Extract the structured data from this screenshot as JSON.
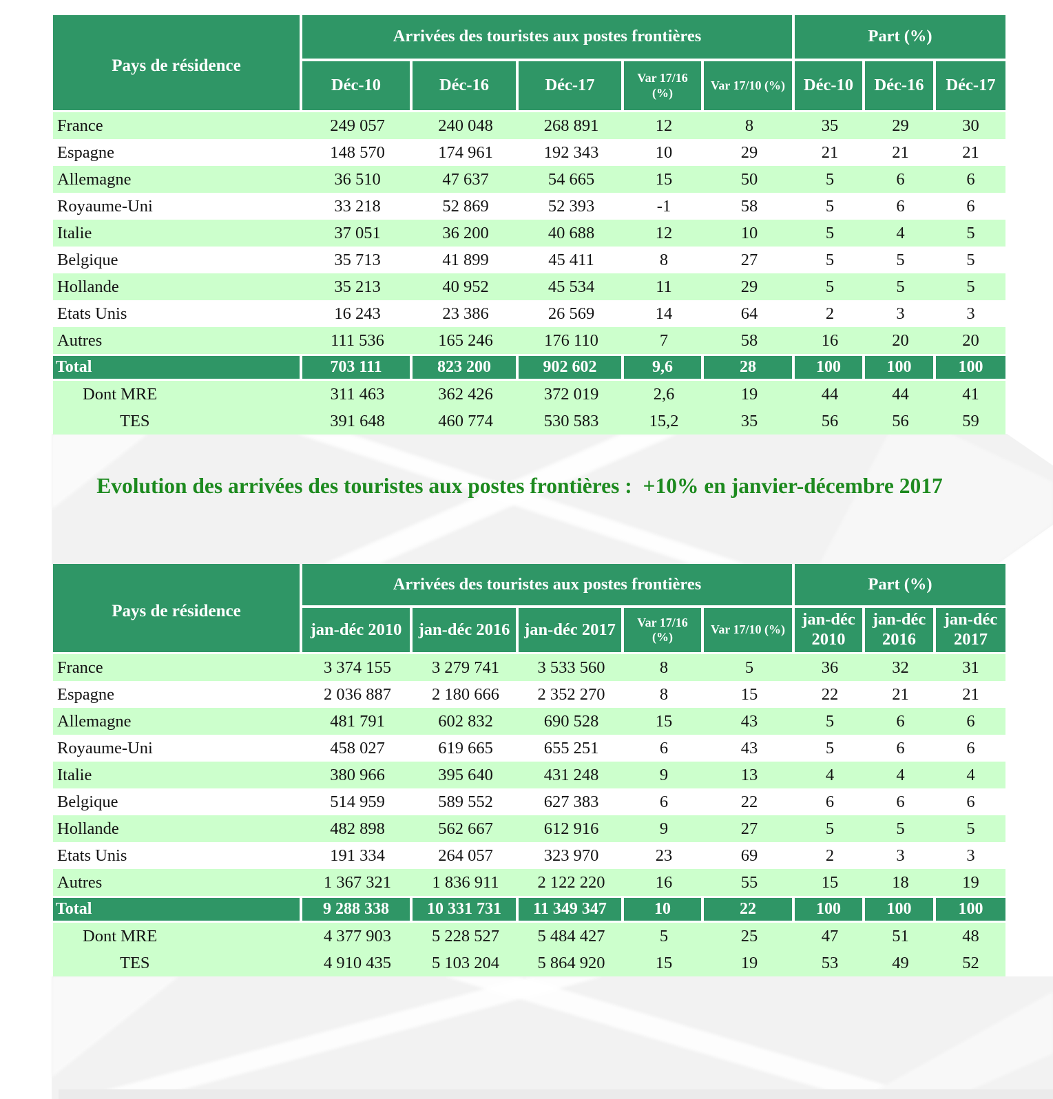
{
  "page": {
    "title": "Evolution des arrivées des touristes aux postes frontières :  +10% en janvier-décembre 2017",
    "title_color": "#1d8a1f",
    "background": "#ffffff",
    "watermark_gray": "#f1f1f1"
  },
  "colors": {
    "header_green": "#2f9666",
    "band_green": "#ccffcc",
    "row_white": "#ffffff",
    "header_text": "#ffffff",
    "body_text": "#141414"
  },
  "tables": [
    {
      "name": "arrivals-december",
      "corner": "Pays de résidence",
      "groups": [
        "Arrivées des touristes aux postes frontières",
        "Part (%)"
      ],
      "columns": [
        "Déc-10",
        "Déc-16",
        "Déc-17",
        "Var 17/16\n(%)",
        "Var 17/10 (%)",
        "Déc-10",
        "Déc-16",
        "Déc-17"
      ],
      "small_columns": [
        3,
        4
      ],
      "rows": [
        {
          "label": "France",
          "type": "band",
          "values": [
            "249 057",
            "240 048",
            "268 891",
            "12",
            "8",
            "35",
            "29",
            "30"
          ]
        },
        {
          "label": "Espagne",
          "type": "plain",
          "values": [
            "148 570",
            "174 961",
            "192 343",
            "10",
            "29",
            "21",
            "21",
            "21"
          ]
        },
        {
          "label": "Allemagne",
          "type": "band",
          "values": [
            "36 510",
            "47 637",
            "54 665",
            "15",
            "50",
            "5",
            "6",
            "6"
          ]
        },
        {
          "label": "Royaume-Uni",
          "type": "plain",
          "values": [
            "33 218",
            "52 869",
            "52 393",
            "-1",
            "58",
            "5",
            "6",
            "6"
          ]
        },
        {
          "label": "Italie",
          "type": "band",
          "values": [
            "37 051",
            "36 200",
            "40 688",
            "12",
            "10",
            "5",
            "4",
            "5"
          ]
        },
        {
          "label": "Belgique",
          "type": "plain",
          "values": [
            "35 713",
            "41 899",
            "45 411",
            "8",
            "27",
            "5",
            "5",
            "5"
          ]
        },
        {
          "label": "Hollande",
          "type": "band",
          "values": [
            "35 213",
            "40 952",
            "45 534",
            "11",
            "29",
            "5",
            "5",
            "5"
          ]
        },
        {
          "label": "Etats Unis",
          "type": "plain",
          "values": [
            "16 243",
            "23 386",
            "26 569",
            "14",
            "64",
            "2",
            "3",
            "3"
          ]
        },
        {
          "label": "Autres",
          "type": "band",
          "values": [
            "111 536",
            "165 246",
            "176 110",
            "7",
            "58",
            "16",
            "20",
            "20"
          ]
        },
        {
          "label": "Total",
          "type": "total",
          "values": [
            "703 111",
            "823 200",
            "902 602",
            "9,6",
            "28",
            "100",
            "100",
            "100"
          ]
        },
        {
          "label": "Dont MRE",
          "type": "sub1",
          "values": [
            "311 463",
            "362 426",
            "372 019",
            "2,6",
            "19",
            "44",
            "44",
            "41"
          ]
        },
        {
          "label": "TES",
          "type": "sub2",
          "values": [
            "391 648",
            "460 774",
            "530 583",
            "15,2",
            "35",
            "56",
            "56",
            "59"
          ]
        }
      ]
    },
    {
      "name": "arrivals-january-december",
      "corner": "Pays de résidence",
      "groups": [
        "Arrivées des touristes aux postes frontières",
        "Part (%)"
      ],
      "columns": [
        "jan-déc 2010",
        "jan-déc 2016",
        "jan-déc 2017",
        "Var 17/16\n(%)",
        "Var 17/10 (%)",
        "jan-déc\n2010",
        "jan-déc\n2016",
        "jan-déc\n2017"
      ],
      "small_columns": [
        3,
        4
      ],
      "rows": [
        {
          "label": "France",
          "type": "band",
          "values": [
            "3 374 155",
            "3 279 741",
            "3 533 560",
            "8",
            "5",
            "36",
            "32",
            "31"
          ]
        },
        {
          "label": "Espagne",
          "type": "plain",
          "values": [
            "2 036 887",
            "2 180 666",
            "2 352 270",
            "8",
            "15",
            "22",
            "21",
            "21"
          ]
        },
        {
          "label": "Allemagne",
          "type": "band",
          "values": [
            "481 791",
            "602 832",
            "690 528",
            "15",
            "43",
            "5",
            "6",
            "6"
          ]
        },
        {
          "label": "Royaume-Uni",
          "type": "plain",
          "values": [
            "458 027",
            "619 665",
            "655 251",
            "6",
            "43",
            "5",
            "6",
            "6"
          ]
        },
        {
          "label": "Italie",
          "type": "band",
          "values": [
            "380 966",
            "395 640",
            "431 248",
            "9",
            "13",
            "4",
            "4",
            "4"
          ]
        },
        {
          "label": "Belgique",
          "type": "plain",
          "values": [
            "514 959",
            "589 552",
            "627 383",
            "6",
            "22",
            "6",
            "6",
            "6"
          ]
        },
        {
          "label": "Hollande",
          "type": "band",
          "values": [
            "482 898",
            "562 667",
            "612 916",
            "9",
            "27",
            "5",
            "5",
            "5"
          ]
        },
        {
          "label": "Etats Unis",
          "type": "plain",
          "values": [
            "191 334",
            "264 057",
            "323 970",
            "23",
            "69",
            "2",
            "3",
            "3"
          ]
        },
        {
          "label": "Autres",
          "type": "band",
          "values": [
            "1 367 321",
            "1 836 911",
            "2 122 220",
            "16",
            "55",
            "15",
            "18",
            "19"
          ]
        },
        {
          "label": "Total",
          "type": "total",
          "values": [
            "9 288 338",
            "10 331 731",
            "11 349 347",
            "10",
            "22",
            "100",
            "100",
            "100"
          ]
        },
        {
          "label": "Dont MRE",
          "type": "sub1",
          "values": [
            "4 377 903",
            "5 228 527",
            "5 484 427",
            "5",
            "25",
            "47",
            "51",
            "48"
          ]
        },
        {
          "label": "TES",
          "type": "sub2",
          "values": [
            "4 910 435",
            "5 103 204",
            "5 864 920",
            "15",
            "19",
            "53",
            "49",
            "52"
          ]
        }
      ]
    }
  ]
}
